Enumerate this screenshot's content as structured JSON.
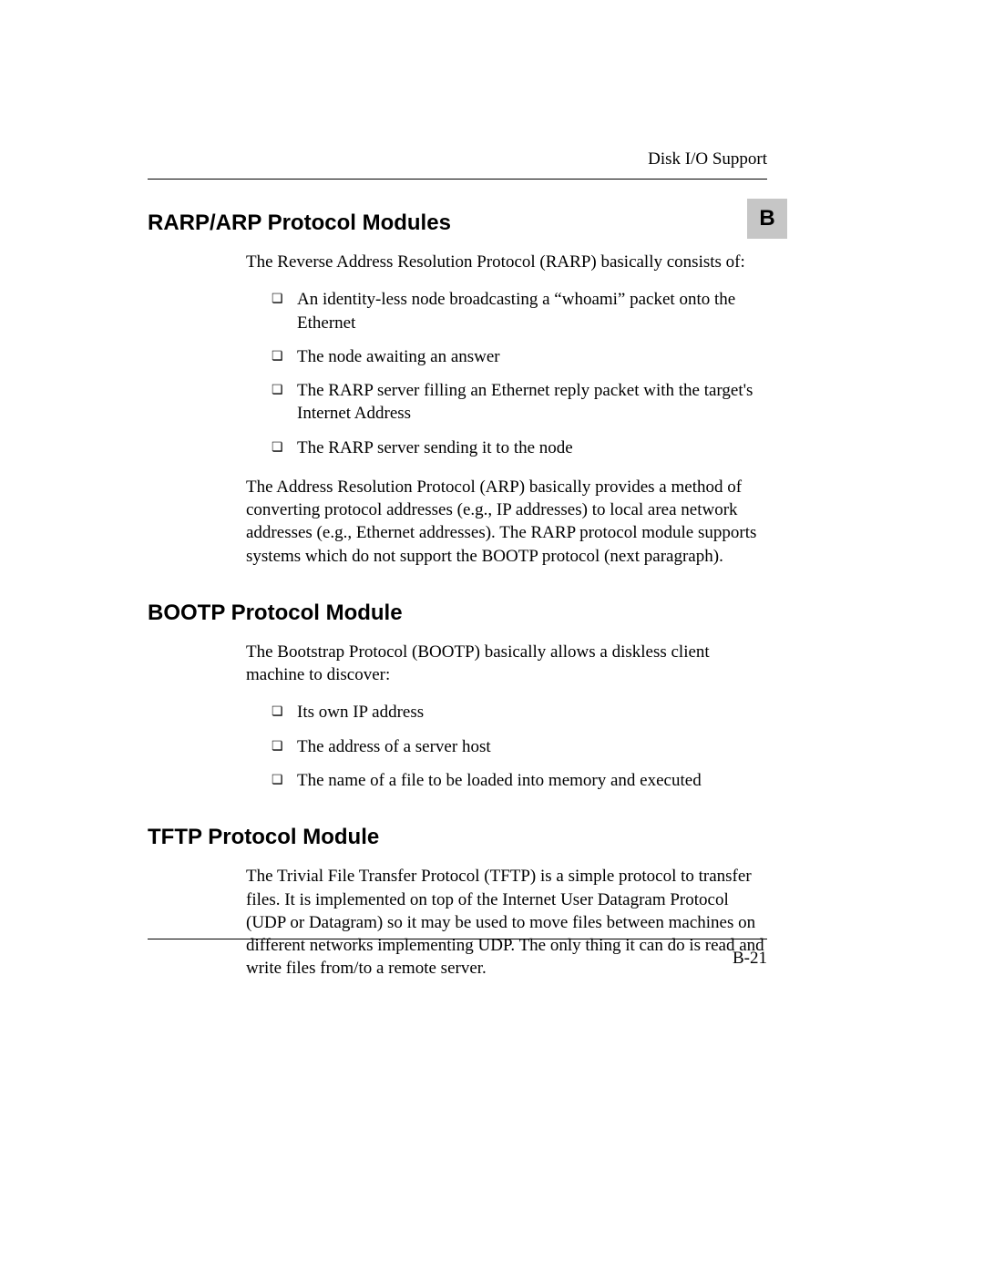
{
  "header": {
    "running_title": "Disk I/O Support"
  },
  "appendix_badge": "B",
  "sections": [
    {
      "heading": "RARP/ARP Protocol Modules",
      "intro": "The Reverse Address Resolution Protocol (RARP) basically consists of:",
      "bullets": [
        "An identity-less node broadcasting a “whoami” packet onto the Ethernet",
        "The node awaiting an answer",
        "The RARP server filling an Ethernet reply packet with the target's Internet Address",
        "The RARP server sending it to the node"
      ],
      "outro": "The Address Resolution Protocol (ARP) basically provides a method of converting protocol addresses (e.g., IP addresses) to local area network addresses (e.g., Ethernet addresses). The RARP protocol module supports systems which do not support the BOOTP protocol (next paragraph)."
    },
    {
      "heading": "BOOTP Protocol Module",
      "intro": "The Bootstrap Protocol (BOOTP) basically allows a diskless client machine to discover:",
      "bullets": [
        "Its own IP address",
        "The address of a server host",
        "The name of a file to be loaded into memory and executed"
      ]
    },
    {
      "heading": "TFTP Protocol Module",
      "intro": "The Trivial File Transfer Protocol (TFTP) is a simple protocol to transfer files. It is implemented on top of the Internet User Datagram Protocol (UDP or Datagram) so it may be used to move files between machines on different networks implementing UDP. The only thing it can do is read and write files from/to a remote server."
    }
  ],
  "footer": {
    "page_number": "B-21"
  },
  "style": {
    "background_color": "#ffffff",
    "text_color": "#000000",
    "badge_bg": "#c6c6c6",
    "heading_font": "Helvetica",
    "body_font": "Palatino",
    "heading_fontsize": 24,
    "body_fontsize": 19,
    "rule_color": "#000000"
  }
}
